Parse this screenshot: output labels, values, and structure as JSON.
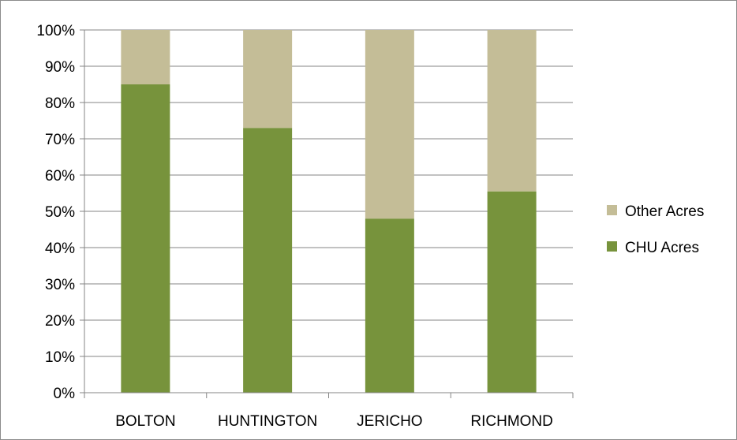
{
  "chart_data": {
    "type": "bar",
    "stacked": true,
    "normalized": true,
    "categories": [
      "BOLTON",
      "HUNTINGTON",
      "JERICHO",
      "RICHMOND"
    ],
    "series": [
      {
        "name": "CHU Acres",
        "values": [
          85,
          73,
          48,
          55.5
        ],
        "color": "#77933c"
      },
      {
        "name": "Other Acres",
        "values": [
          15,
          27,
          52,
          44.5
        ],
        "color": "#c4bd97"
      }
    ],
    "y_ticks": [
      "0%",
      "10%",
      "20%",
      "30%",
      "40%",
      "50%",
      "60%",
      "70%",
      "80%",
      "90%",
      "100%"
    ],
    "ylim": [
      0,
      100
    ],
    "grid": true,
    "legend_position": "right",
    "legend_order": [
      "Other Acres",
      "CHU Acres"
    ],
    "title": "",
    "xlabel": "",
    "ylabel": ""
  }
}
